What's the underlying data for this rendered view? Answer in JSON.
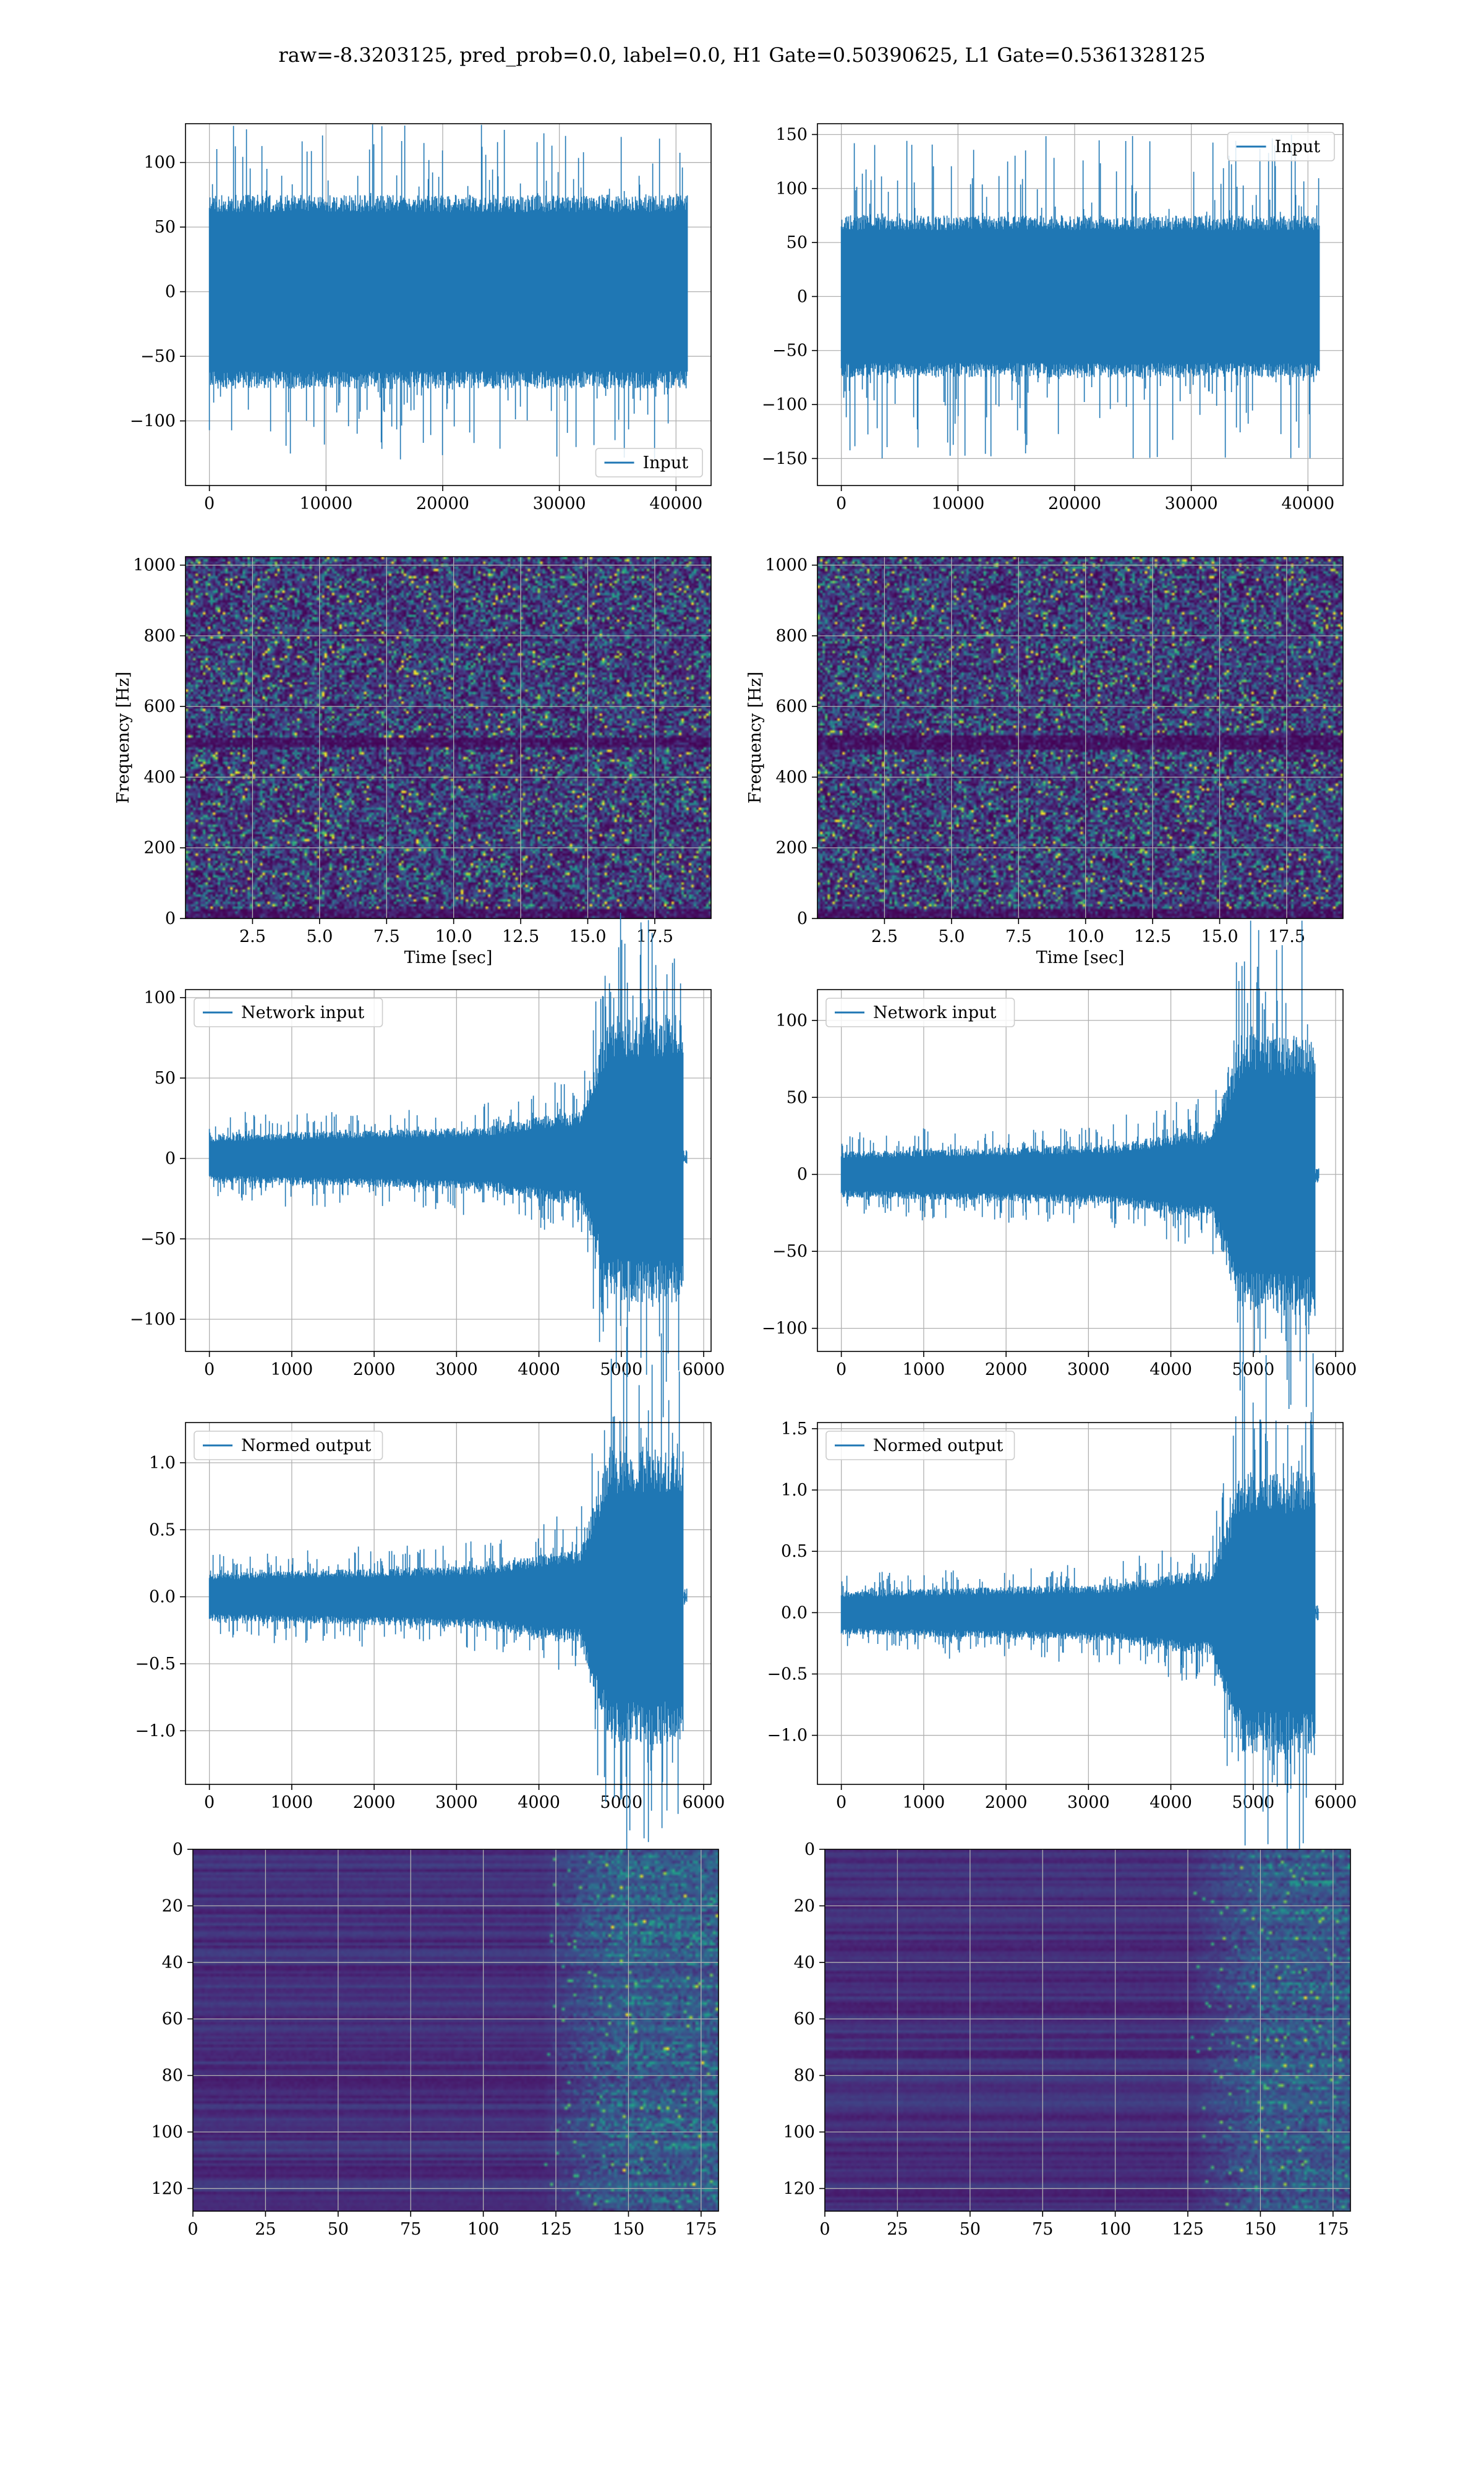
{
  "figure": {
    "title": "raw=-8.3203125, pred_prob=0.0, label=0.0, H1 Gate=0.50390625, L1 Gate=0.5361328125"
  },
  "colors": {
    "line": "#1f77b4",
    "viridis": [
      "#440154",
      "#482878",
      "#3e4a89",
      "#31688e",
      "#26828e",
      "#1f9e89",
      "#35b779",
      "#6ece58",
      "#b5de2b",
      "#fde725"
    ]
  },
  "chart_data": [
    {
      "id": "raw-h1",
      "type": "line",
      "series": [
        {
          "name": "Input",
          "values_summary": "dense noise, x 0 to 40959, envelope about ±75, peaks to ±130"
        }
      ],
      "legend": "lower right",
      "xlim": [
        -2048,
        43007
      ],
      "ylim": [
        -150,
        130
      ],
      "xticks": [
        0,
        10000,
        20000,
        30000,
        40000
      ],
      "yticks": [
        -100,
        -50,
        0,
        50,
        100
      ],
      "gen": {
        "n": 40960,
        "amp": 75,
        "peak": 130
      }
    },
    {
      "id": "raw-l1",
      "type": "line",
      "series": [
        {
          "name": "Input",
          "values_summary": "dense noise, x 0 to 40959, envelope about ±75, peaks to ±150"
        }
      ],
      "legend": "upper right",
      "xlim": [
        -2048,
        43007
      ],
      "ylim": [
        -175,
        160
      ],
      "xticks": [
        0,
        10000,
        20000,
        30000,
        40000
      ],
      "yticks": [
        -150,
        -100,
        -50,
        0,
        50,
        100,
        150
      ],
      "gen": {
        "n": 40960,
        "amp": 75,
        "peak": 150
      }
    },
    {
      "id": "spec-h1",
      "type": "heatmap",
      "xlabel": "Time [sec]",
      "ylabel": "Frequency [Hz]",
      "xlim": [
        0,
        19.6
      ],
      "ylim": [
        0,
        1024
      ],
      "xticks": [
        2.5,
        5.0,
        7.5,
        10.0,
        12.5,
        15.0,
        17.5
      ],
      "yticks": [
        0,
        200,
        400,
        600,
        800,
        1000
      ],
      "dark_band_hz": [
        485,
        515
      ]
    },
    {
      "id": "spec-l1",
      "type": "heatmap",
      "xlabel": "Time [sec]",
      "ylabel": "Frequency [Hz]",
      "xlim": [
        0,
        19.6
      ],
      "ylim": [
        0,
        1024
      ],
      "xticks": [
        2.5,
        5.0,
        7.5,
        10.0,
        12.5,
        15.0,
        17.5
      ],
      "yticks": [
        0,
        200,
        400,
        600,
        800,
        1000
      ],
      "dark_band_hz": [
        480,
        520
      ]
    },
    {
      "id": "net-h1",
      "type": "line",
      "series": [
        {
          "name": "Network input",
          "values_summary": "noise ±20 growing to ±95 near x 4700-5700, flat after 5750"
        }
      ],
      "legend": "upper left",
      "xlim": [
        -290,
        6090
      ],
      "ylim": [
        -120,
        105
      ],
      "xticks": [
        0,
        1000,
        2000,
        3000,
        4000,
        5000,
        6000
      ],
      "yticks": [
        -100,
        -50,
        0,
        50,
        100
      ],
      "gen": {
        "base": 15,
        "burst": 60,
        "end": 5750,
        "xmax": 5800
      }
    },
    {
      "id": "net-l1",
      "type": "line",
      "series": [
        {
          "name": "Network input",
          "values_summary": "noise ±20 growing to ±110 near x 4700-5700, flat after 5750"
        }
      ],
      "legend": "upper left",
      "xlim": [
        -290,
        6090
      ],
      "ylim": [
        -115,
        120
      ],
      "xticks": [
        0,
        1000,
        2000,
        3000,
        4000,
        5000,
        6000
      ],
      "yticks": [
        -100,
        -50,
        0,
        50,
        100
      ],
      "gen": {
        "base": 15,
        "burst": 62,
        "end": 5750,
        "xmax": 5800
      }
    },
    {
      "id": "norm-h1",
      "type": "line",
      "series": [
        {
          "name": "Normed output",
          "values_summary": "noise ±0.2 growing to ±1.2 near x 4700-5700, flat after 5750"
        }
      ],
      "legend": "upper left",
      "xlim": [
        -290,
        6090
      ],
      "ylim": [
        -1.4,
        1.3
      ],
      "xticks": [
        0,
        1000,
        2000,
        3000,
        4000,
        5000,
        6000
      ],
      "yticks": [
        -1.0,
        -0.5,
        0.0,
        0.5,
        1.0
      ],
      "gen": {
        "base": 0.18,
        "burst": 0.75,
        "end": 5750,
        "xmax": 5800
      }
    },
    {
      "id": "norm-l1",
      "type": "line",
      "series": [
        {
          "name": "Normed output",
          "values_summary": "noise ±0.2 growing to ±1.4 near x 4700-5700, flat after 5750"
        }
      ],
      "legend": "upper left",
      "xlim": [
        -290,
        6090
      ],
      "ylim": [
        -1.4,
        1.55
      ],
      "xticks": [
        0,
        1000,
        2000,
        3000,
        4000,
        5000,
        6000
      ],
      "yticks": [
        -1.0,
        -0.5,
        0.0,
        0.5,
        1.0,
        1.5
      ],
      "gen": {
        "base": 0.18,
        "burst": 0.8,
        "end": 5750,
        "xmax": 5800
      }
    },
    {
      "id": "feat-h1",
      "type": "heatmap",
      "xlim": [
        0,
        181
      ],
      "ylim": [
        128,
        0
      ],
      "xticks": [
        0,
        25,
        50,
        75,
        100,
        125,
        150,
        175
      ],
      "yticks": [
        0,
        20,
        40,
        60,
        80,
        100,
        120
      ],
      "active_from_x": 120
    },
    {
      "id": "feat-l1",
      "type": "heatmap",
      "xlim": [
        0,
        181
      ],
      "ylim": [
        128,
        0
      ],
      "xticks": [
        0,
        25,
        50,
        75,
        100,
        125,
        150,
        175
      ],
      "yticks": [
        0,
        20,
        40,
        60,
        80,
        100,
        120
      ],
      "active_from_x": 125
    }
  ]
}
